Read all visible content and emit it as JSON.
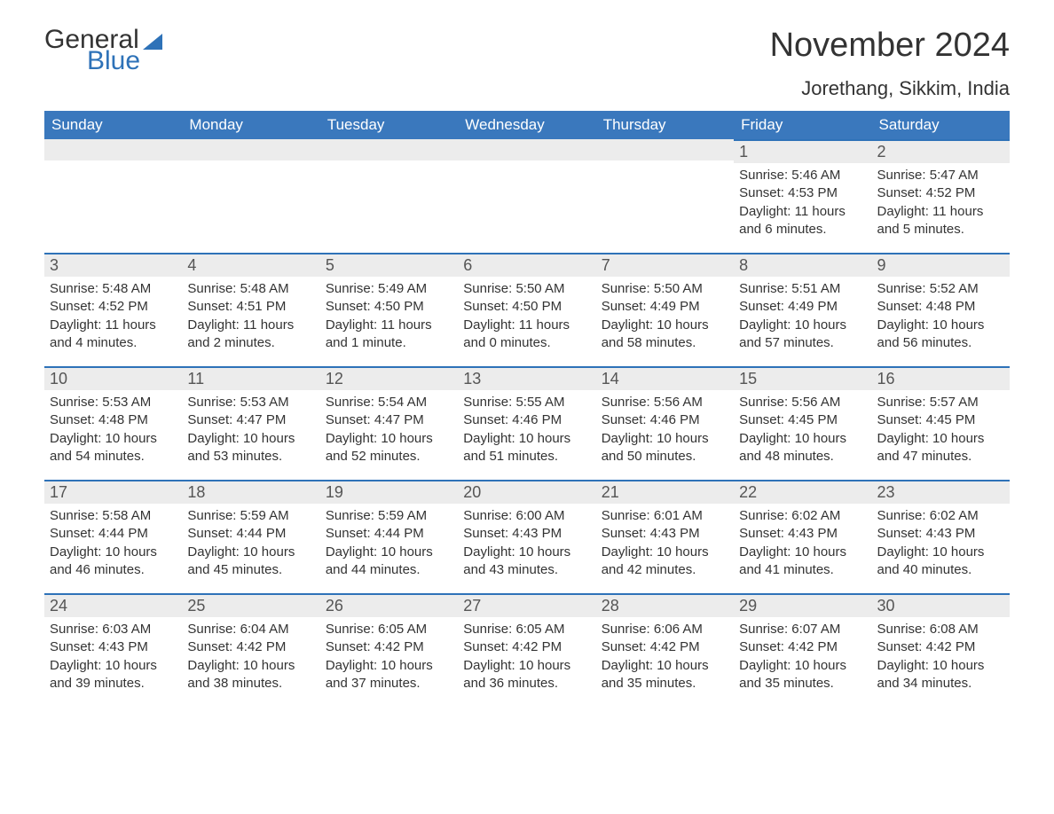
{
  "logo": {
    "text_general": "General",
    "text_blue": "Blue"
  },
  "header": {
    "month_title": "November 2024",
    "location": "Jorethang, Sikkim, India"
  },
  "calendar": {
    "columns": [
      "Sunday",
      "Monday",
      "Tuesday",
      "Wednesday",
      "Thursday",
      "Friday",
      "Saturday"
    ],
    "header_bg": "#3a78bd",
    "header_text_color": "#ffffff",
    "daynum_bg": "#ececec",
    "daynum_border_top": "#2e72b8",
    "weeks": [
      [
        null,
        null,
        null,
        null,
        null,
        {
          "num": "1",
          "sunrise": "Sunrise: 5:46 AM",
          "sunset": "Sunset: 4:53 PM",
          "daylight": "Daylight: 11 hours and 6 minutes."
        },
        {
          "num": "2",
          "sunrise": "Sunrise: 5:47 AM",
          "sunset": "Sunset: 4:52 PM",
          "daylight": "Daylight: 11 hours and 5 minutes."
        }
      ],
      [
        {
          "num": "3",
          "sunrise": "Sunrise: 5:48 AM",
          "sunset": "Sunset: 4:52 PM",
          "daylight": "Daylight: 11 hours and 4 minutes."
        },
        {
          "num": "4",
          "sunrise": "Sunrise: 5:48 AM",
          "sunset": "Sunset: 4:51 PM",
          "daylight": "Daylight: 11 hours and 2 minutes."
        },
        {
          "num": "5",
          "sunrise": "Sunrise: 5:49 AM",
          "sunset": "Sunset: 4:50 PM",
          "daylight": "Daylight: 11 hours and 1 minute."
        },
        {
          "num": "6",
          "sunrise": "Sunrise: 5:50 AM",
          "sunset": "Sunset: 4:50 PM",
          "daylight": "Daylight: 11 hours and 0 minutes."
        },
        {
          "num": "7",
          "sunrise": "Sunrise: 5:50 AM",
          "sunset": "Sunset: 4:49 PM",
          "daylight": "Daylight: 10 hours and 58 minutes."
        },
        {
          "num": "8",
          "sunrise": "Sunrise: 5:51 AM",
          "sunset": "Sunset: 4:49 PM",
          "daylight": "Daylight: 10 hours and 57 minutes."
        },
        {
          "num": "9",
          "sunrise": "Sunrise: 5:52 AM",
          "sunset": "Sunset: 4:48 PM",
          "daylight": "Daylight: 10 hours and 56 minutes."
        }
      ],
      [
        {
          "num": "10",
          "sunrise": "Sunrise: 5:53 AM",
          "sunset": "Sunset: 4:48 PM",
          "daylight": "Daylight: 10 hours and 54 minutes."
        },
        {
          "num": "11",
          "sunrise": "Sunrise: 5:53 AM",
          "sunset": "Sunset: 4:47 PM",
          "daylight": "Daylight: 10 hours and 53 minutes."
        },
        {
          "num": "12",
          "sunrise": "Sunrise: 5:54 AM",
          "sunset": "Sunset: 4:47 PM",
          "daylight": "Daylight: 10 hours and 52 minutes."
        },
        {
          "num": "13",
          "sunrise": "Sunrise: 5:55 AM",
          "sunset": "Sunset: 4:46 PM",
          "daylight": "Daylight: 10 hours and 51 minutes."
        },
        {
          "num": "14",
          "sunrise": "Sunrise: 5:56 AM",
          "sunset": "Sunset: 4:46 PM",
          "daylight": "Daylight: 10 hours and 50 minutes."
        },
        {
          "num": "15",
          "sunrise": "Sunrise: 5:56 AM",
          "sunset": "Sunset: 4:45 PM",
          "daylight": "Daylight: 10 hours and 48 minutes."
        },
        {
          "num": "16",
          "sunrise": "Sunrise: 5:57 AM",
          "sunset": "Sunset: 4:45 PM",
          "daylight": "Daylight: 10 hours and 47 minutes."
        }
      ],
      [
        {
          "num": "17",
          "sunrise": "Sunrise: 5:58 AM",
          "sunset": "Sunset: 4:44 PM",
          "daylight": "Daylight: 10 hours and 46 minutes."
        },
        {
          "num": "18",
          "sunrise": "Sunrise: 5:59 AM",
          "sunset": "Sunset: 4:44 PM",
          "daylight": "Daylight: 10 hours and 45 minutes."
        },
        {
          "num": "19",
          "sunrise": "Sunrise: 5:59 AM",
          "sunset": "Sunset: 4:44 PM",
          "daylight": "Daylight: 10 hours and 44 minutes."
        },
        {
          "num": "20",
          "sunrise": "Sunrise: 6:00 AM",
          "sunset": "Sunset: 4:43 PM",
          "daylight": "Daylight: 10 hours and 43 minutes."
        },
        {
          "num": "21",
          "sunrise": "Sunrise: 6:01 AM",
          "sunset": "Sunset: 4:43 PM",
          "daylight": "Daylight: 10 hours and 42 minutes."
        },
        {
          "num": "22",
          "sunrise": "Sunrise: 6:02 AM",
          "sunset": "Sunset: 4:43 PM",
          "daylight": "Daylight: 10 hours and 41 minutes."
        },
        {
          "num": "23",
          "sunrise": "Sunrise: 6:02 AM",
          "sunset": "Sunset: 4:43 PM",
          "daylight": "Daylight: 10 hours and 40 minutes."
        }
      ],
      [
        {
          "num": "24",
          "sunrise": "Sunrise: 6:03 AM",
          "sunset": "Sunset: 4:43 PM",
          "daylight": "Daylight: 10 hours and 39 minutes."
        },
        {
          "num": "25",
          "sunrise": "Sunrise: 6:04 AM",
          "sunset": "Sunset: 4:42 PM",
          "daylight": "Daylight: 10 hours and 38 minutes."
        },
        {
          "num": "26",
          "sunrise": "Sunrise: 6:05 AM",
          "sunset": "Sunset: 4:42 PM",
          "daylight": "Daylight: 10 hours and 37 minutes."
        },
        {
          "num": "27",
          "sunrise": "Sunrise: 6:05 AM",
          "sunset": "Sunset: 4:42 PM",
          "daylight": "Daylight: 10 hours and 36 minutes."
        },
        {
          "num": "28",
          "sunrise": "Sunrise: 6:06 AM",
          "sunset": "Sunset: 4:42 PM",
          "daylight": "Daylight: 10 hours and 35 minutes."
        },
        {
          "num": "29",
          "sunrise": "Sunrise: 6:07 AM",
          "sunset": "Sunset: 4:42 PM",
          "daylight": "Daylight: 10 hours and 35 minutes."
        },
        {
          "num": "30",
          "sunrise": "Sunrise: 6:08 AM",
          "sunset": "Sunset: 4:42 PM",
          "daylight": "Daylight: 10 hours and 34 minutes."
        }
      ]
    ]
  }
}
